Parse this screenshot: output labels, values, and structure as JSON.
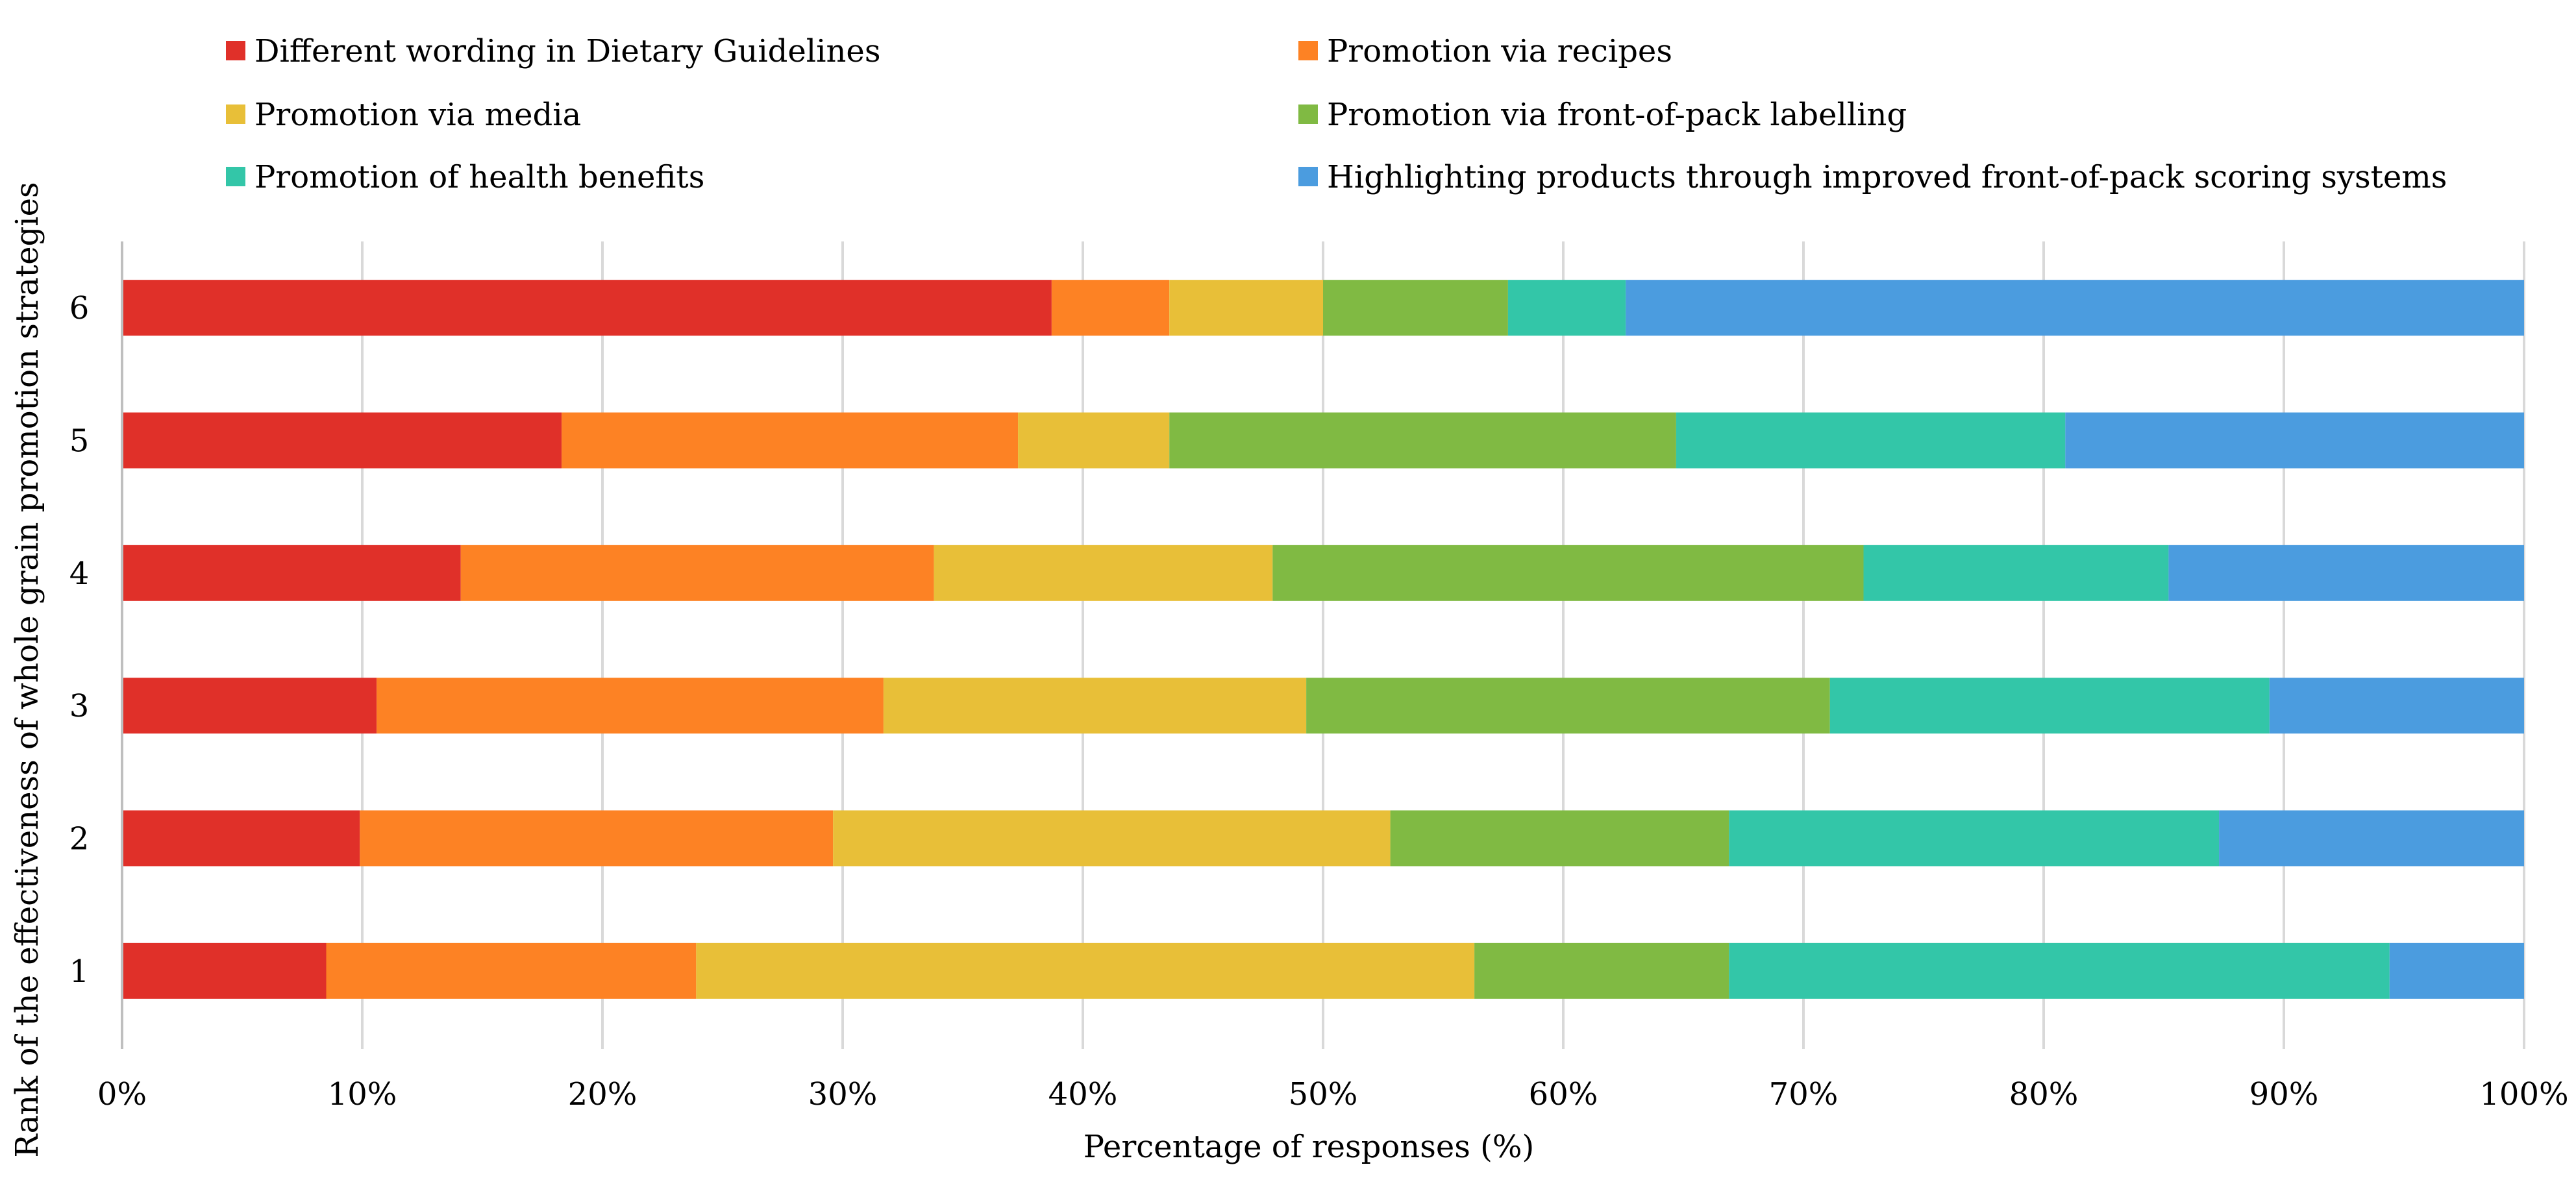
{
  "chart_data": {
    "type": "bar",
    "orientation": "horizontal",
    "stacked": true,
    "title": "",
    "xlabel": "Percentage of responses (%)",
    "ylabel": "Rank of the effectiveness of whole grain promotion strategies",
    "xlim": [
      0,
      100
    ],
    "x_ticks": [
      0,
      10,
      20,
      30,
      40,
      50,
      60,
      70,
      80,
      90,
      100
    ],
    "x_tick_labels": [
      "0%",
      "10%",
      "20%",
      "30%",
      "40%",
      "50%",
      "60%",
      "70%",
      "80%",
      "90%",
      "100%"
    ],
    "grid": "vertical",
    "legend_position": "top",
    "categories": [
      "1",
      "2",
      "3",
      "4",
      "5",
      "6"
    ],
    "series": [
      {
        "name": "Different wording in Dietary Guidelines",
        "color": "#e03029",
        "values": [
          8.5,
          9.9,
          10.6,
          14.1,
          18.3,
          38.7
        ]
      },
      {
        "name": "Promotion via recipes",
        "color": "#fd8224",
        "values": [
          15.4,
          19.7,
          21.1,
          19.7,
          19.0,
          4.9
        ]
      },
      {
        "name": "Promotion via media",
        "color": "#e8bf38",
        "values": [
          32.4,
          23.2,
          17.6,
          14.1,
          6.3,
          6.4
        ]
      },
      {
        "name": "Promotion via front-of-pack labelling",
        "color": "#80ba43",
        "values": [
          10.6,
          14.1,
          21.8,
          24.6,
          21.1,
          7.7
        ]
      },
      {
        "name": "Promotion of health benefits",
        "color": "#33c6a8",
        "values": [
          27.5,
          20.4,
          18.3,
          12.7,
          16.2,
          4.9
        ]
      },
      {
        "name": "Highlighting products through improved front-of-pack scoring systems",
        "color": "#4b9cdf",
        "values": [
          5.6,
          12.7,
          10.6,
          14.8,
          19.1,
          37.4
        ]
      }
    ]
  },
  "colors": {
    "grid": "#d9d9d9",
    "axis": "#bfbfbf",
    "text": "#000000",
    "background": "#ffffff"
  }
}
